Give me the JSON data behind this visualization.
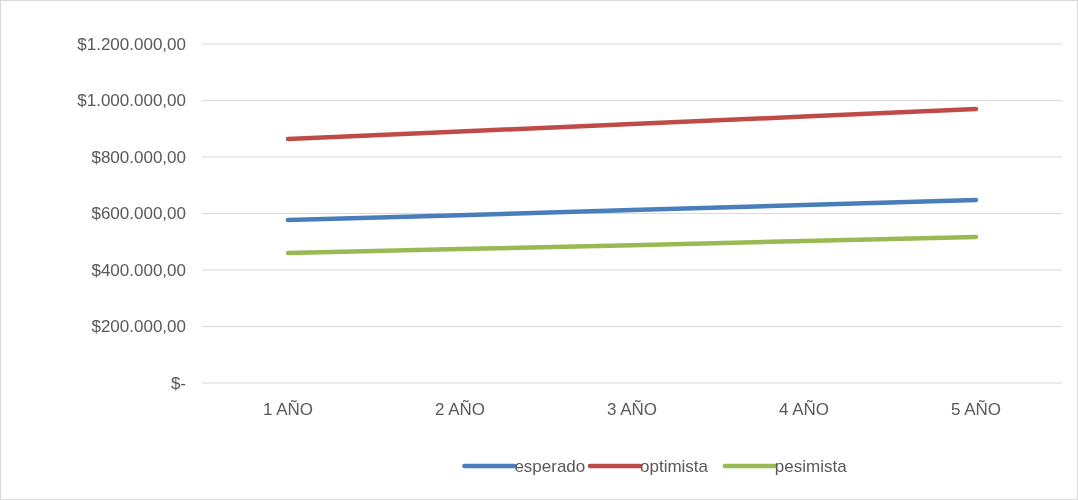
{
  "chart_data": {
    "type": "line",
    "categories": [
      "1 AÑO",
      "2 AÑO",
      "3 AÑO",
      "4 AÑO",
      "5 AÑO"
    ],
    "series": [
      {
        "name": "esperado",
        "color": "#4a7ebb",
        "values": [
          577000,
          594000,
          612000,
          630000,
          648000
        ]
      },
      {
        "name": "optimista",
        "color": "#be4b48",
        "values": [
          864000,
          890000,
          917000,
          943000,
          970000
        ]
      },
      {
        "name": "pesimista",
        "color": "#98b954",
        "values": [
          460000,
          474000,
          488000,
          503000,
          517000
        ]
      }
    ],
    "ylim": [
      0,
      1200000
    ],
    "yticks": [
      {
        "value": 0,
        "label": "$-"
      },
      {
        "value": 200000,
        "label": "$200.000,00"
      },
      {
        "value": 400000,
        "label": "$400.000,00"
      },
      {
        "value": 600000,
        "label": "$600.000,00"
      },
      {
        "value": 800000,
        "label": "$800.000,00"
      },
      {
        "value": 1000000,
        "label": "$1.000.000,00"
      },
      {
        "value": 1200000,
        "label": "$1.200.000,00"
      }
    ],
    "grid": "y",
    "legend": "bottom"
  }
}
